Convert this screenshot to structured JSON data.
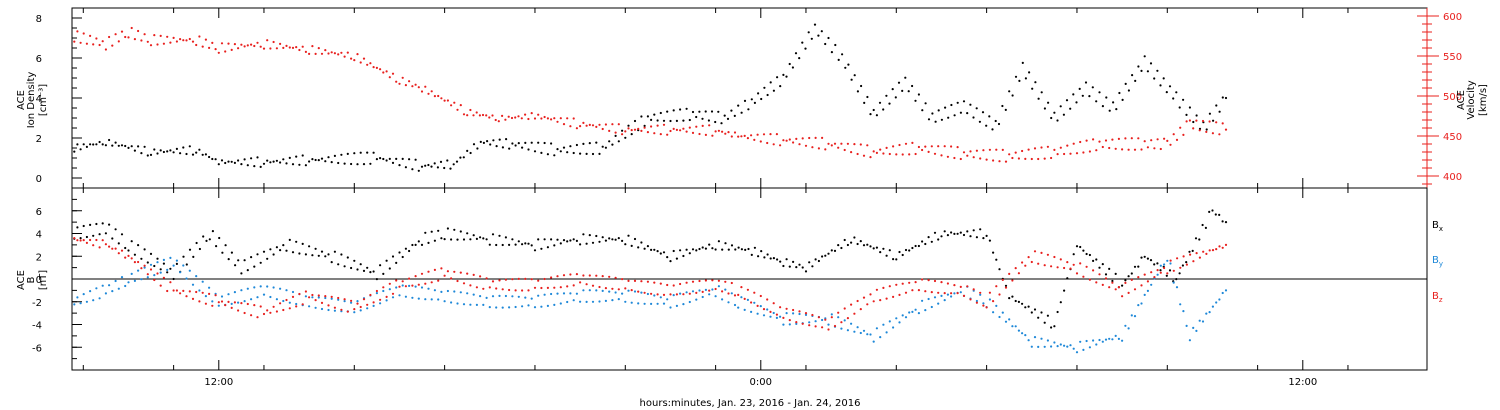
{
  "colors": {
    "black": "#000000",
    "red": "#e8201e",
    "blue": "#1e88d8",
    "frame": "#000000"
  },
  "xlabel": "hours:minutes, Jan. 23, 2016 - Jan. 24, 2016",
  "x_tick_labels": [
    "12:00",
    "0:00",
    "12:00"
  ],
  "top_panel": {
    "left_axis_label": [
      "ACE",
      "Ion Density"
    ],
    "left_axis_unit": "[cm⁻³]",
    "right_axis_label": [
      "ACE",
      "Velocity"
    ],
    "right_axis_unit": "[km/s]"
  },
  "bottom_panel": {
    "left_axis_label": [
      "ACE",
      "B"
    ],
    "left_axis_unit": "[nT]",
    "legend": [
      {
        "base": "B",
        "sub": "x",
        "color": "#000000"
      },
      {
        "base": "B",
        "sub": "y",
        "color": "#1e88d8"
      },
      {
        "base": "B",
        "sub": "z",
        "color": "#e8201e"
      }
    ]
  },
  "chart_data": [
    {
      "type": "scatter",
      "title": "",
      "x_unit": "hours since Jan. 23, 2016 00:00",
      "xlim": [
        8.75,
        38.75
      ],
      "x_ticks": [
        12,
        24,
        36
      ],
      "y_left_label": "ACE Ion Density [cm⁻³]",
      "ylim_left": [
        -0.5,
        8.5
      ],
      "y_left_ticks": [
        0,
        2,
        4,
        6,
        8
      ],
      "y_right_label": "ACE Velocity [km/s]",
      "ylim_right": [
        385,
        610
      ],
      "y_right_ticks": [
        400,
        450,
        500,
        550,
        600
      ],
      "series": [
        {
          "color": "#000000",
          "axis": "left",
          "x": [
            8.8,
            9.5,
            10.5,
            11.5,
            12.0,
            13.0,
            14.0,
            15.5,
            16.5,
            17.2,
            17.8,
            18.5,
            19.5,
            20.5,
            21.5,
            22.5,
            23.2,
            23.8,
            24.5,
            25.2,
            25.8,
            26.5,
            27.2,
            27.8,
            28.5,
            29.2,
            29.8,
            30.5,
            31.2,
            31.8,
            32.5,
            33.2,
            33.8,
            34.3
          ],
          "y": [
            1.5,
            1.8,
            1.3,
            1.4,
            0.8,
            0.8,
            0.9,
            1.0,
            0.6,
            0.7,
            1.8,
            1.7,
            1.4,
            1.5,
            3.0,
            3.2,
            3.0,
            3.8,
            5.0,
            7.5,
            6.0,
            3.2,
            4.8,
            3.0,
            3.6,
            2.6,
            5.5,
            3.0,
            4.5,
            3.5,
            5.8,
            4.0,
            2.5,
            4.0
          ]
        },
        {
          "color": "#e8201e",
          "axis": "right",
          "x": [
            8.8,
            9.5,
            10.0,
            10.5,
            11.5,
            12.0,
            13.0,
            14.0,
            15.0,
            16.0,
            16.5,
            17.5,
            18.2,
            19.0,
            20.0,
            21.0,
            22.0,
            23.0,
            23.5,
            24.5,
            25.5,
            26.5,
            27.5,
            28.5,
            29.5,
            30.5,
            31.5,
            32.5,
            33.0,
            33.5,
            34.3
          ],
          "y": [
            575,
            565,
            580,
            570,
            570,
            560,
            565,
            558,
            550,
            520,
            510,
            480,
            472,
            475,
            465,
            458,
            458,
            457,
            450,
            445,
            440,
            430,
            435,
            428,
            425,
            430,
            440,
            440,
            440,
            465,
            458
          ]
        }
      ]
    },
    {
      "type": "scatter",
      "title": "",
      "x_unit": "hours since Jan. 23, 2016 00:00",
      "xlim": [
        8.75,
        38.75
      ],
      "x_ticks": [
        12,
        24,
        36
      ],
      "ylabel": "ACE B [nT]",
      "ylim": [
        -8,
        8
      ],
      "y_ticks": [
        -6,
        -4,
        -2,
        0,
        2,
        4,
        6
      ],
      "zero_line": true,
      "series": [
        {
          "name": "Bx",
          "color": "#000000",
          "x": [
            8.8,
            9.5,
            10.0,
            11.0,
            11.8,
            12.5,
            13.5,
            14.5,
            15.5,
            16.5,
            17.0,
            18.0,
            19.0,
            20.0,
            21.0,
            22.0,
            23.0,
            23.8,
            24.5,
            25.0,
            26.0,
            27.0,
            28.0,
            29.0,
            29.5,
            30.5,
            31.0,
            32.0,
            32.5,
            33.2,
            34.0,
            34.3
          ],
          "y": [
            4,
            4.5,
            3,
            0.5,
            4,
            1,
            3,
            2,
            0.5,
            3.5,
            4,
            3.5,
            3,
            3.5,
            3.5,
            2,
            3,
            2.5,
            1.5,
            1,
            3.5,
            2,
            4,
            4,
            -1.5,
            -4,
            3,
            -0.5,
            2,
            0,
            6,
            5
          ]
        },
        {
          "name": "By",
          "color": "#1e88d8",
          "x": [
            8.8,
            9.5,
            10.0,
            11.0,
            12.0,
            13.0,
            14.0,
            15.0,
            16.0,
            17.0,
            18.0,
            19.0,
            20.0,
            21.0,
            22.0,
            23.0,
            23.5,
            24.5,
            25.5,
            26.5,
            27.5,
            28.5,
            29.0,
            30.0,
            31.0,
            32.0,
            33.0,
            33.5,
            34.3
          ],
          "y": [
            -2,
            -1,
            0,
            1.5,
            -2,
            -1,
            -2,
            -2.5,
            -1,
            -1.5,
            -2,
            -2,
            -1.5,
            -1.5,
            -2,
            -1,
            -2,
            -3.5,
            -3.5,
            -5,
            -2.5,
            -1,
            -2,
            -5.5,
            -6,
            -5,
            2,
            -5,
            -1
          ]
        },
        {
          "name": "Bz",
          "color": "#e8201e",
          "x": [
            8.8,
            9.5,
            10.0,
            11.0,
            12.0,
            13.0,
            14.0,
            15.0,
            16.0,
            17.0,
            18.0,
            19.0,
            20.0,
            21.0,
            22.0,
            23.0,
            23.5,
            24.5,
            25.5,
            26.5,
            27.5,
            28.5,
            29.0,
            30.0,
            31.0,
            32.0,
            33.0,
            34.3
          ],
          "y": [
            3.5,
            3,
            2,
            -1,
            -2,
            -3,
            -1.5,
            -2.5,
            -0.5,
            0.5,
            -0.5,
            -0.5,
            0,
            -0.5,
            -1,
            -0.5,
            -1,
            -3,
            -4,
            -1.5,
            -0.5,
            -1,
            -2,
            2,
            1,
            -1,
            1,
            3
          ]
        }
      ]
    }
  ]
}
